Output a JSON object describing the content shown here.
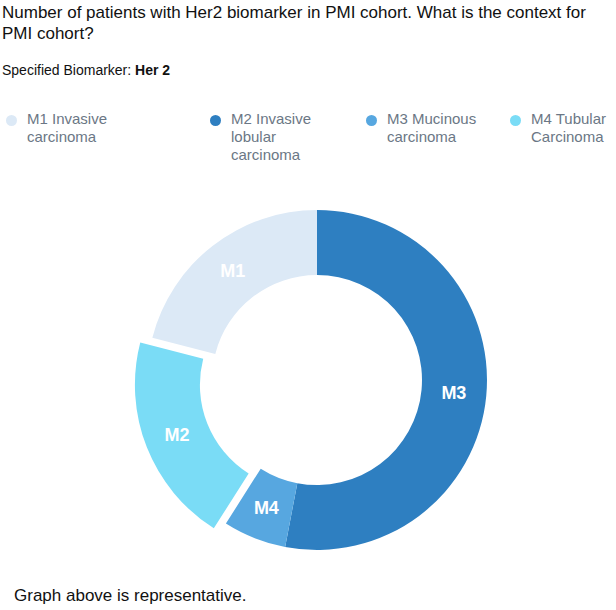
{
  "chart_data": {
    "type": "donut",
    "title": "Number of patients with Her2 biomarker in PMI cohort. What is the context for PMI cohort?",
    "subtitle_label": "Specified Biomarker:",
    "biomarker": "Her 2",
    "categories": [
      "M3",
      "M4",
      "M2",
      "M1"
    ],
    "values": [
      53,
      6,
      20,
      21
    ],
    "colors": [
      "#2e7fc1",
      "#57a7e0",
      "#7adcf6",
      "#dce9f6"
    ],
    "legend_labels": [
      "M1 Invasive carcinoma",
      "M2 Invasive lobular carcinoma",
      "M3 Mucinous carcinoma",
      "M4 Tubular Carcinoma"
    ],
    "legend_colors": [
      "#dce9f6",
      "#2e7fc1",
      "#57a7e0",
      "#7adcf6"
    ],
    "footnote": "Graph above is representative."
  }
}
